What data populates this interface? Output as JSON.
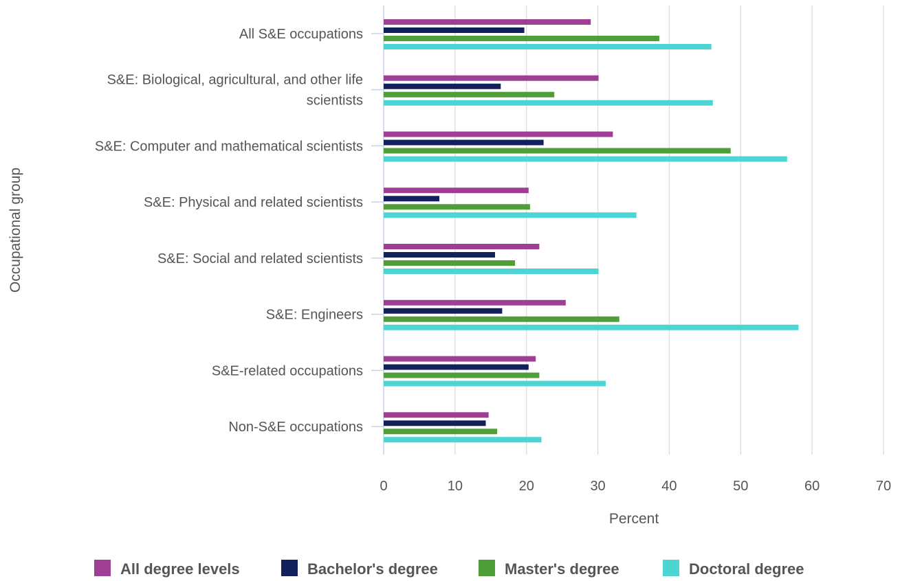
{
  "chart_data": {
    "type": "bar",
    "orientation": "horizontal",
    "title": "",
    "xlabel": "Percent",
    "ylabel": "Occupational group",
    "xlim": [
      0,
      70
    ],
    "xticks": [
      "0",
      "10",
      "20",
      "30",
      "40",
      "50",
      "60",
      "70"
    ],
    "grid": "vertical",
    "legend_position": "bottom",
    "categories": [
      [
        "All S&E occupations"
      ],
      [
        "S&E: Biological, agricultural, and other life",
        "scientists"
      ],
      [
        "S&E: Computer and mathematical scientists"
      ],
      [
        "S&E: Physical and related scientists"
      ],
      [
        "S&E: Social and related scientists"
      ],
      [
        "S&E: Engineers"
      ],
      [
        "S&E-related occupations"
      ],
      [
        "Non-S&E occupations"
      ]
    ],
    "series": [
      {
        "name": "All degree levels",
        "color": "#9e3f94",
        "values": [
          29.0,
          30.1,
          32.1,
          20.3,
          21.8,
          25.5,
          21.3,
          14.7
        ]
      },
      {
        "name": "Bachelor's degree",
        "color": "#12205c",
        "values": [
          19.7,
          16.4,
          22.4,
          7.8,
          15.6,
          16.6,
          20.3,
          14.3
        ]
      },
      {
        "name": "Master's degree",
        "color": "#4f9e3a",
        "values": [
          38.6,
          23.9,
          48.6,
          20.5,
          18.4,
          33.0,
          21.8,
          15.9
        ]
      },
      {
        "name": "Doctoral degree",
        "color": "#4dd5d3",
        "values": [
          45.9,
          46.1,
          56.5,
          35.4,
          30.1,
          58.1,
          31.1,
          22.1
        ]
      }
    ]
  }
}
